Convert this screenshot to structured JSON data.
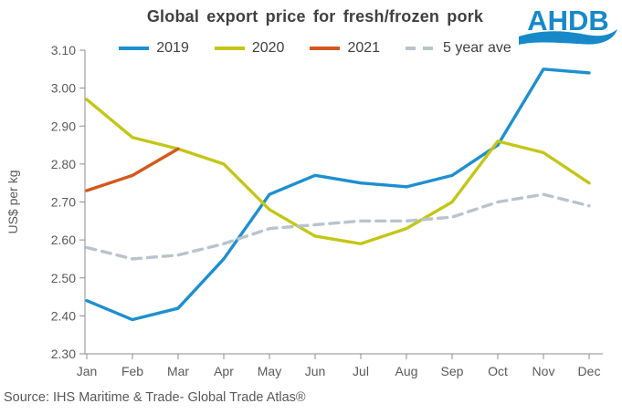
{
  "header": {
    "title": "Global export price for fresh/frozen pork",
    "logo_text": "AHDB"
  },
  "source_note": "Source: IHS Maritime & Trade- Global Trade Atlas®",
  "colors": {
    "logo_blue": "#1789c9",
    "title_text": "#404040",
    "axis_text": "#595959",
    "axis_line": "#8c8c8c",
    "series_2019": "#1e8fcf",
    "series_2020": "#c3c617",
    "series_2021": "#d4581d",
    "series_5yr": "#b8c4cc"
  },
  "chart_data": {
    "type": "line",
    "title": "Global export price for fresh/frozen pork",
    "xlabel": "",
    "ylabel": "US$ per kg",
    "ylim": [
      2.3,
      3.1
    ],
    "ytick_step": 0.1,
    "grid": false,
    "legend_position": "top",
    "categories": [
      "Jan",
      "Feb",
      "Mar",
      "Apr",
      "May",
      "Jun",
      "Jul",
      "Aug",
      "Sep",
      "Oct",
      "Nov",
      "Dec"
    ],
    "series": [
      {
        "name": "2019",
        "color": "#1e8fcf",
        "dash": false,
        "values": [
          2.44,
          2.39,
          2.42,
          2.55,
          2.72,
          2.77,
          2.75,
          2.74,
          2.77,
          2.85,
          3.05,
          3.04
        ]
      },
      {
        "name": "2020",
        "color": "#c3c617",
        "dash": false,
        "values": [
          2.97,
          2.87,
          2.84,
          2.8,
          2.68,
          2.61,
          2.59,
          2.63,
          2.7,
          2.86,
          2.83,
          2.75
        ]
      },
      {
        "name": "2021",
        "color": "#d4581d",
        "dash": false,
        "values": [
          2.73,
          2.77,
          2.84,
          null,
          null,
          null,
          null,
          null,
          null,
          null,
          null,
          null
        ]
      },
      {
        "name": "5 year ave",
        "color": "#b8c4cc",
        "dash": true,
        "values": [
          2.58,
          2.55,
          2.56,
          2.59,
          2.63,
          2.64,
          2.65,
          2.65,
          2.66,
          2.7,
          2.72,
          2.69
        ]
      }
    ]
  }
}
